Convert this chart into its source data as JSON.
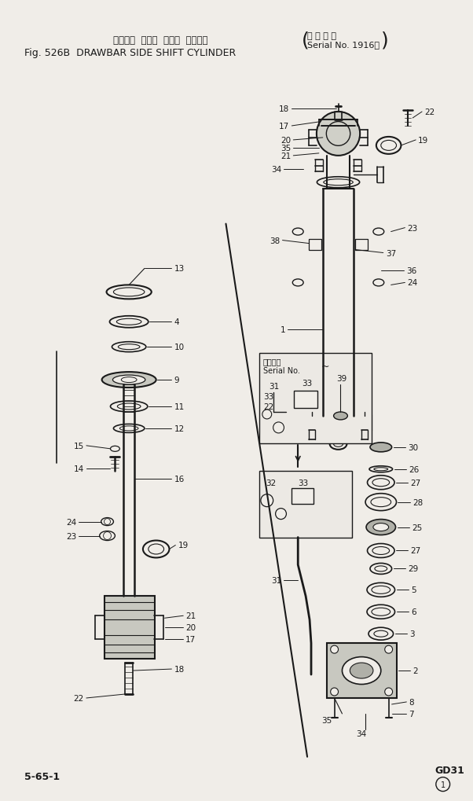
{
  "title_jp": "ドローバ  サイド  シフト  シリンダ",
  "title_note_jp": "適 用 号 機",
  "title_en": "Fig. 526B  DRAWBAR SIDE SHIFT CYLINDER",
  "title_serial": "Serial No. 1916～",
  "footer_left": "5-65-1",
  "footer_right": "GD31",
  "bg_color": "#f0ede8",
  "line_color": "#1a1a1a",
  "text_color": "#1a1a1a"
}
